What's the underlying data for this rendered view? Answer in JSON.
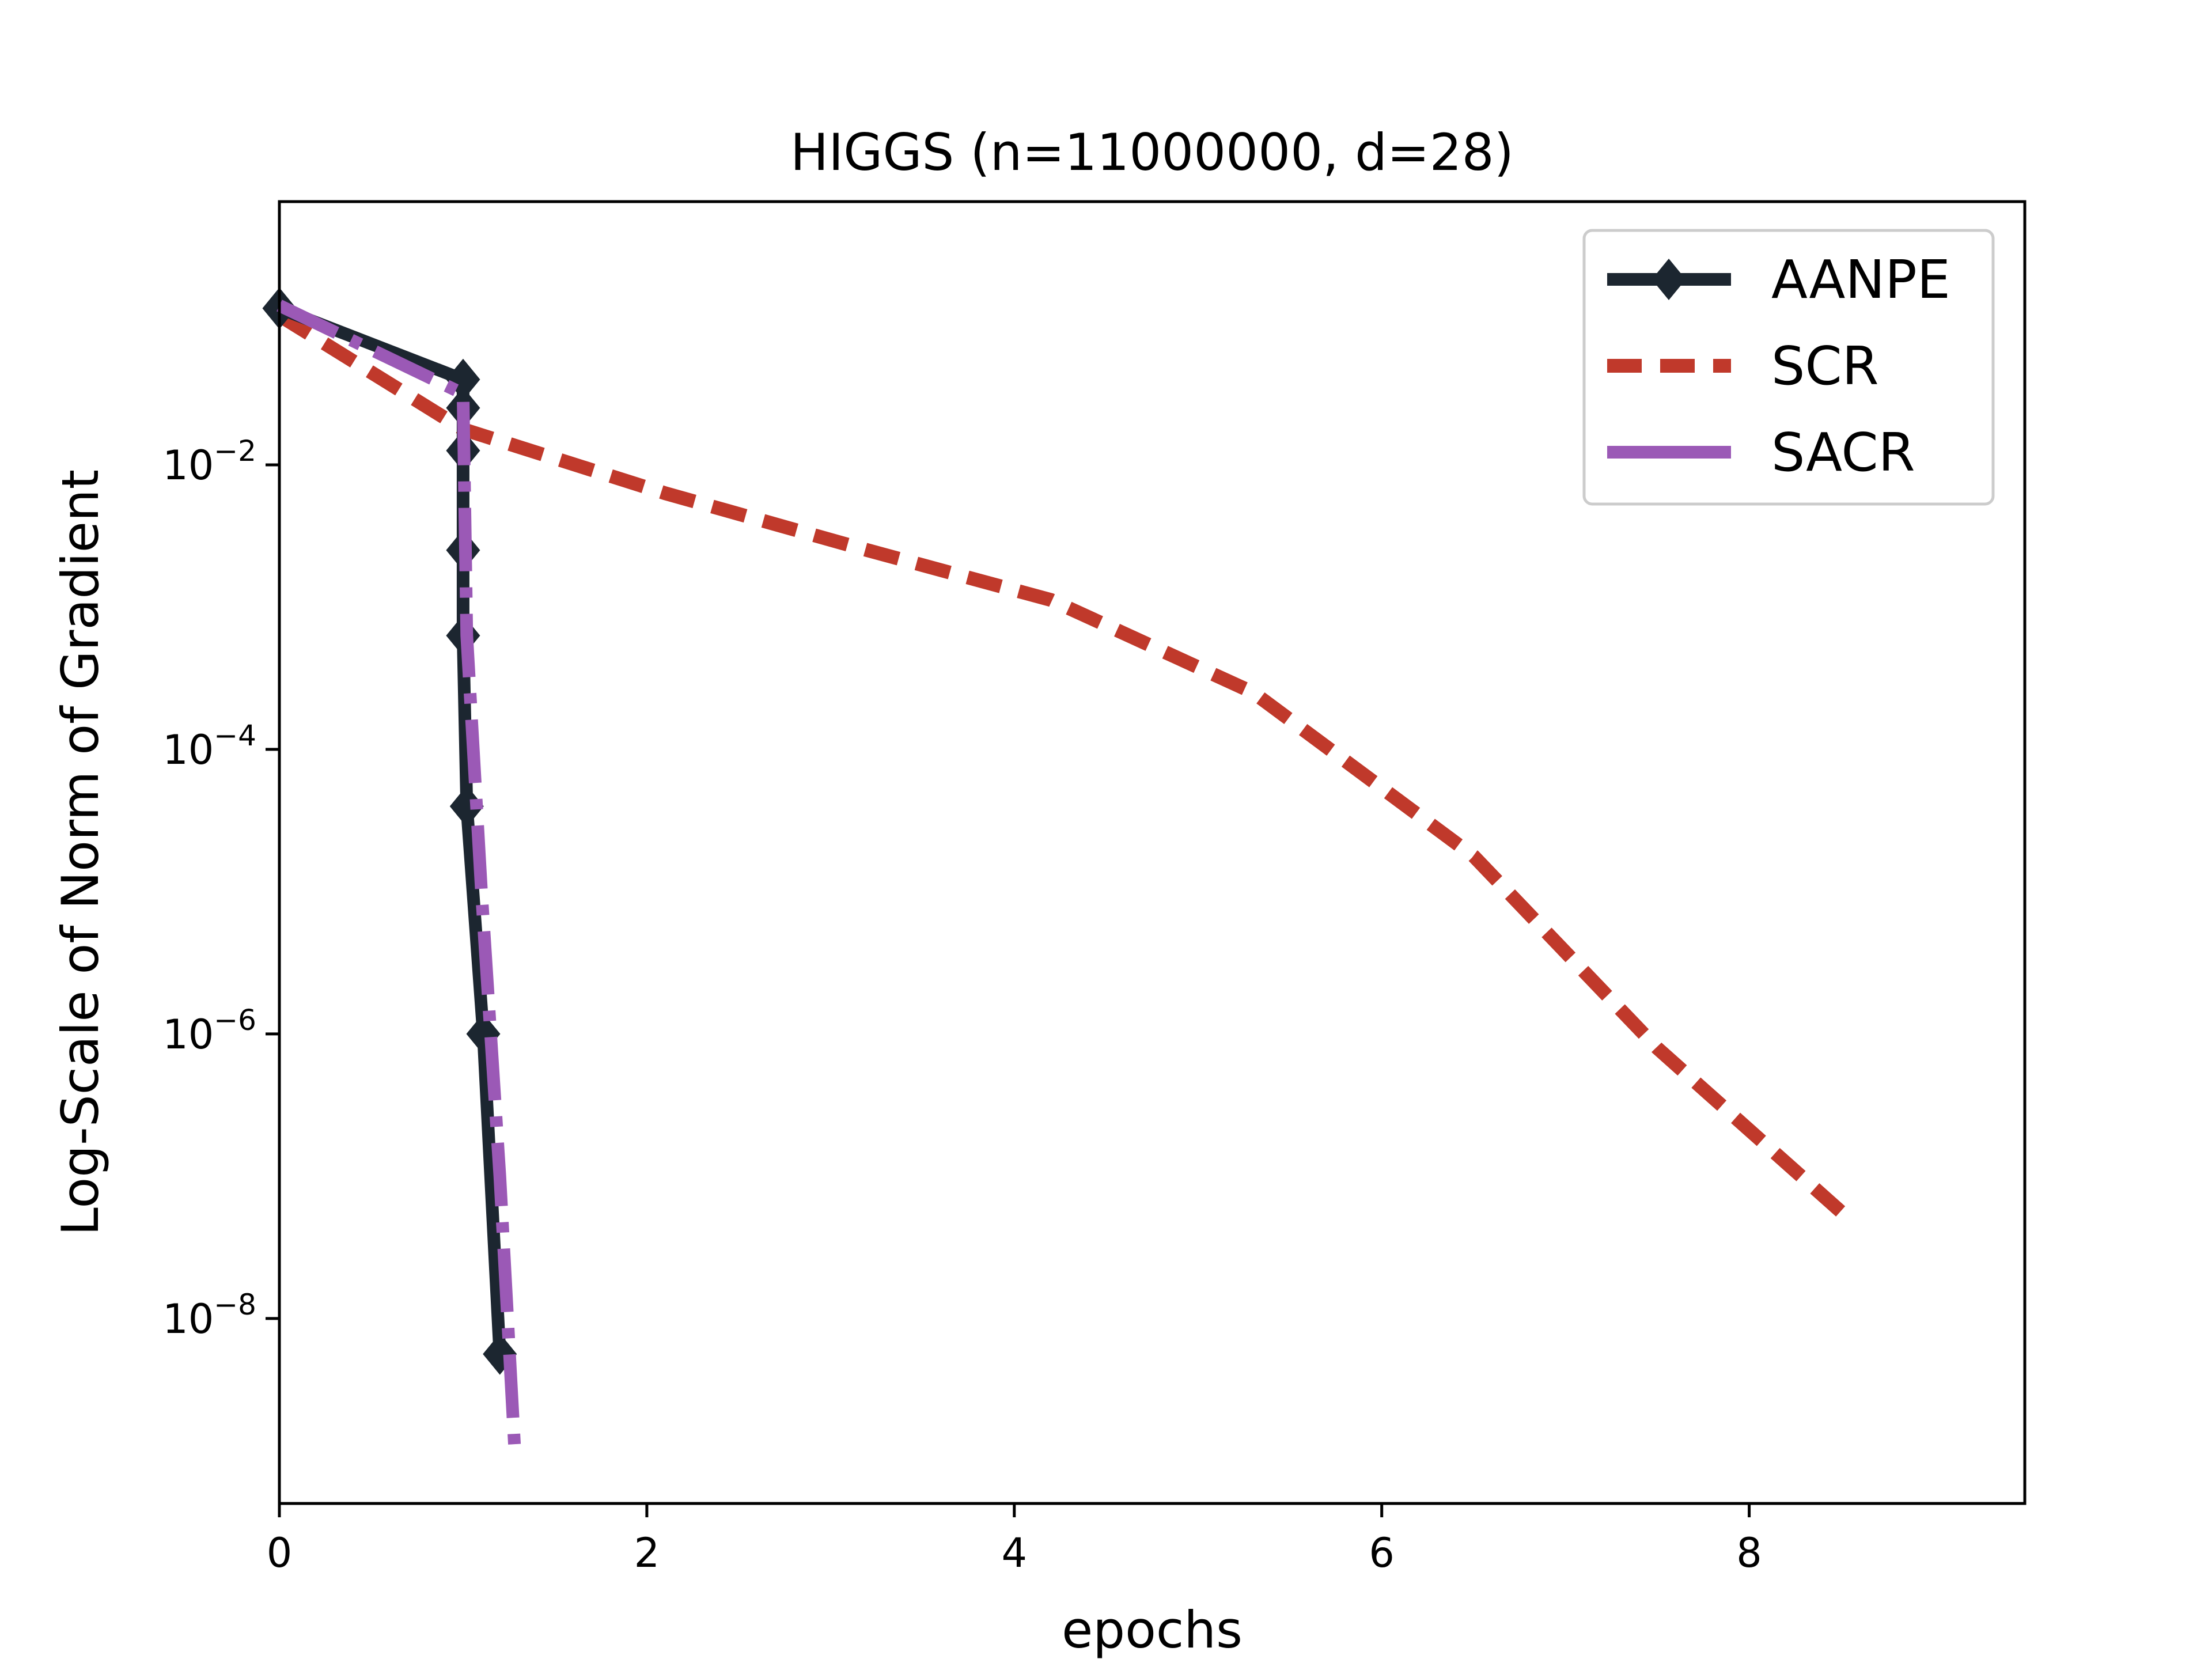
{
  "chart_data": {
    "type": "line",
    "title": "HIGGS (n=11000000, d=28)",
    "xlabel": "epochs",
    "ylabel": "Log-Scale of Norm of Gradient",
    "xlim": [
      0,
      9.5
    ],
    "ylim_log10": [
      -9.3,
      -0.15
    ],
    "yscale": "log",
    "x_ticks": [
      0,
      2,
      4,
      6,
      8
    ],
    "x_tick_labels": [
      "0",
      "2",
      "4",
      "6",
      "8"
    ],
    "y_ticks_log10": [
      -2,
      -4,
      -6,
      -8
    ],
    "y_tick_labels": [
      {
        "base": "10",
        "exp": "−2"
      },
      {
        "base": "10",
        "exp": "−4"
      },
      {
        "base": "10",
        "exp": "−6"
      },
      {
        "base": "10",
        "exp": "−8"
      }
    ],
    "grid": false,
    "legend_position": "top-right",
    "series": [
      {
        "name": "AANPE",
        "color": "#1c2630",
        "style": "solid",
        "marker": "diamond",
        "x": [
          0,
          1.0,
          1.0,
          1.0,
          1.0,
          1.0,
          1.02,
          1.11,
          1.2
        ],
        "log10_y": [
          -0.9,
          -1.4,
          -1.6,
          -1.9,
          -2.6,
          -3.2,
          -4.4,
          -6.0,
          -8.25
        ]
      },
      {
        "name": "SCR",
        "color": "#c0392b",
        "style": "dashed",
        "marker": "none",
        "x": [
          0,
          1.0,
          2.1,
          3.2,
          4.2,
          5.3,
          6.5,
          7.5,
          8.5
        ],
        "log10_y": [
          -0.95,
          -1.75,
          -2.2,
          -2.6,
          -2.95,
          -3.6,
          -4.75,
          -6.1,
          -7.25
        ]
      },
      {
        "name": "SACR",
        "color": "#9b59b6",
        "style": "dashdot",
        "marker": "none",
        "x": [
          0,
          1.0,
          1.02,
          1.1,
          1.2,
          1.28
        ],
        "log10_y": [
          -0.88,
          -1.5,
          -3.2,
          -5.0,
          -7.0,
          -8.9
        ]
      }
    ]
  }
}
